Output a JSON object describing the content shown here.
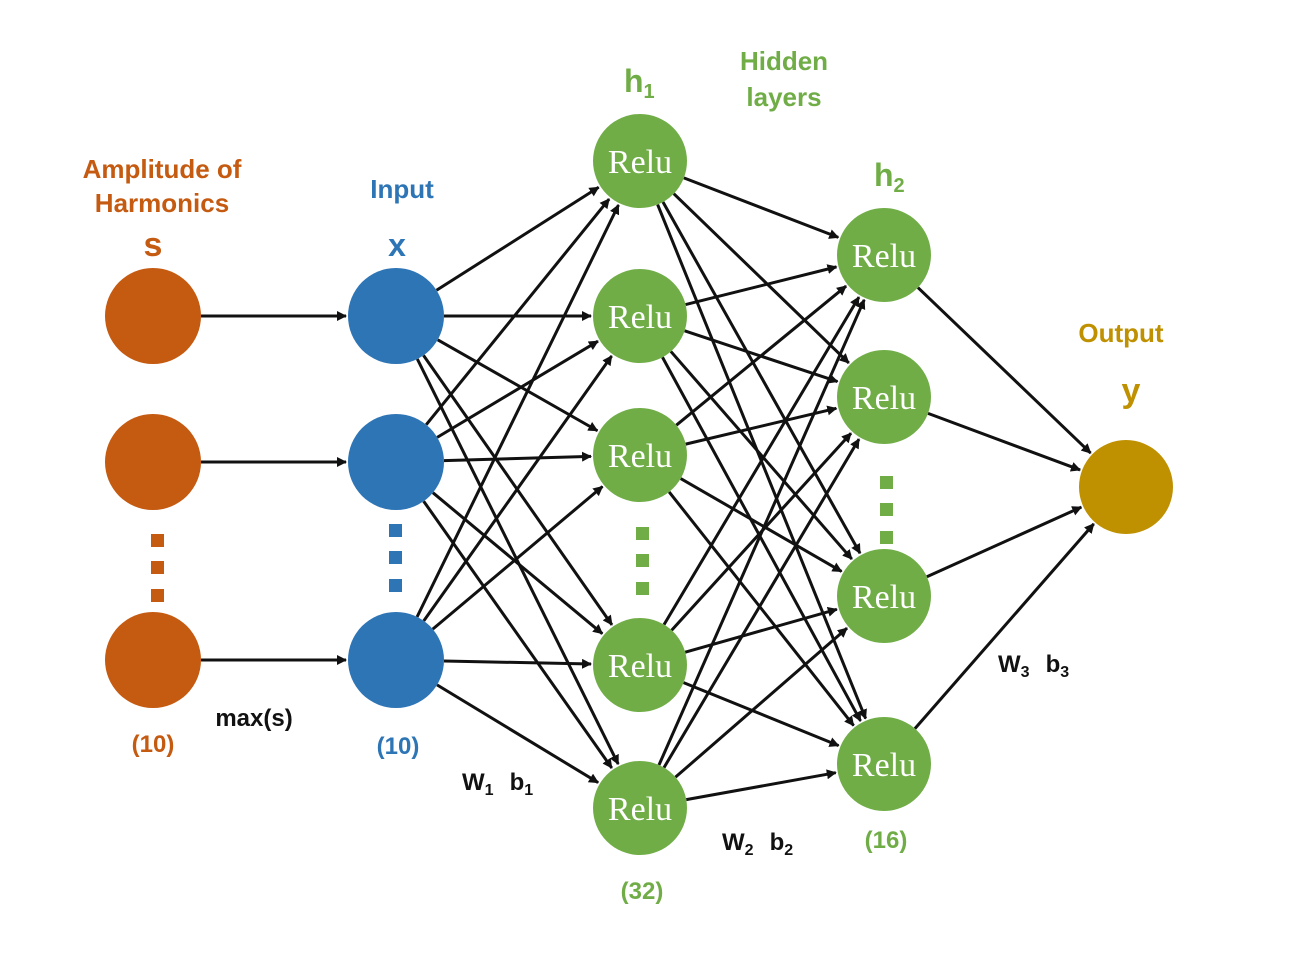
{
  "colors": {
    "source": "#c55a11",
    "input": "#2e75b6",
    "hidden": "#70ad47",
    "output": "#bf9000",
    "edge": "#111111"
  },
  "labels": {
    "source_title_line1": "Amplitude of",
    "source_title_line2": "Harmonics",
    "source_symbol": "s",
    "source_count": "(10)",
    "max_op": "max(s)",
    "input_title": "Input",
    "input_symbol": "x",
    "input_count": "(10)",
    "h1_base": "h",
    "h1_sub": "1",
    "hidden_title_line1": "Hidden",
    "hidden_title_line2": "layers",
    "h1_count": "(32)",
    "h2_base": "h",
    "h2_sub": "2",
    "h2_count": "(16)",
    "output_title": "Output",
    "output_symbol": "y",
    "w1": "W",
    "w1_sub": "1",
    "b1": "b",
    "b1_sub": "1",
    "w2": "W",
    "w2_sub": "2",
    "b2": "b",
    "b2_sub": "2",
    "w3": "W",
    "w3_sub": "3",
    "b3": "b",
    "b3_sub": "3",
    "activation": "Relu"
  }
}
